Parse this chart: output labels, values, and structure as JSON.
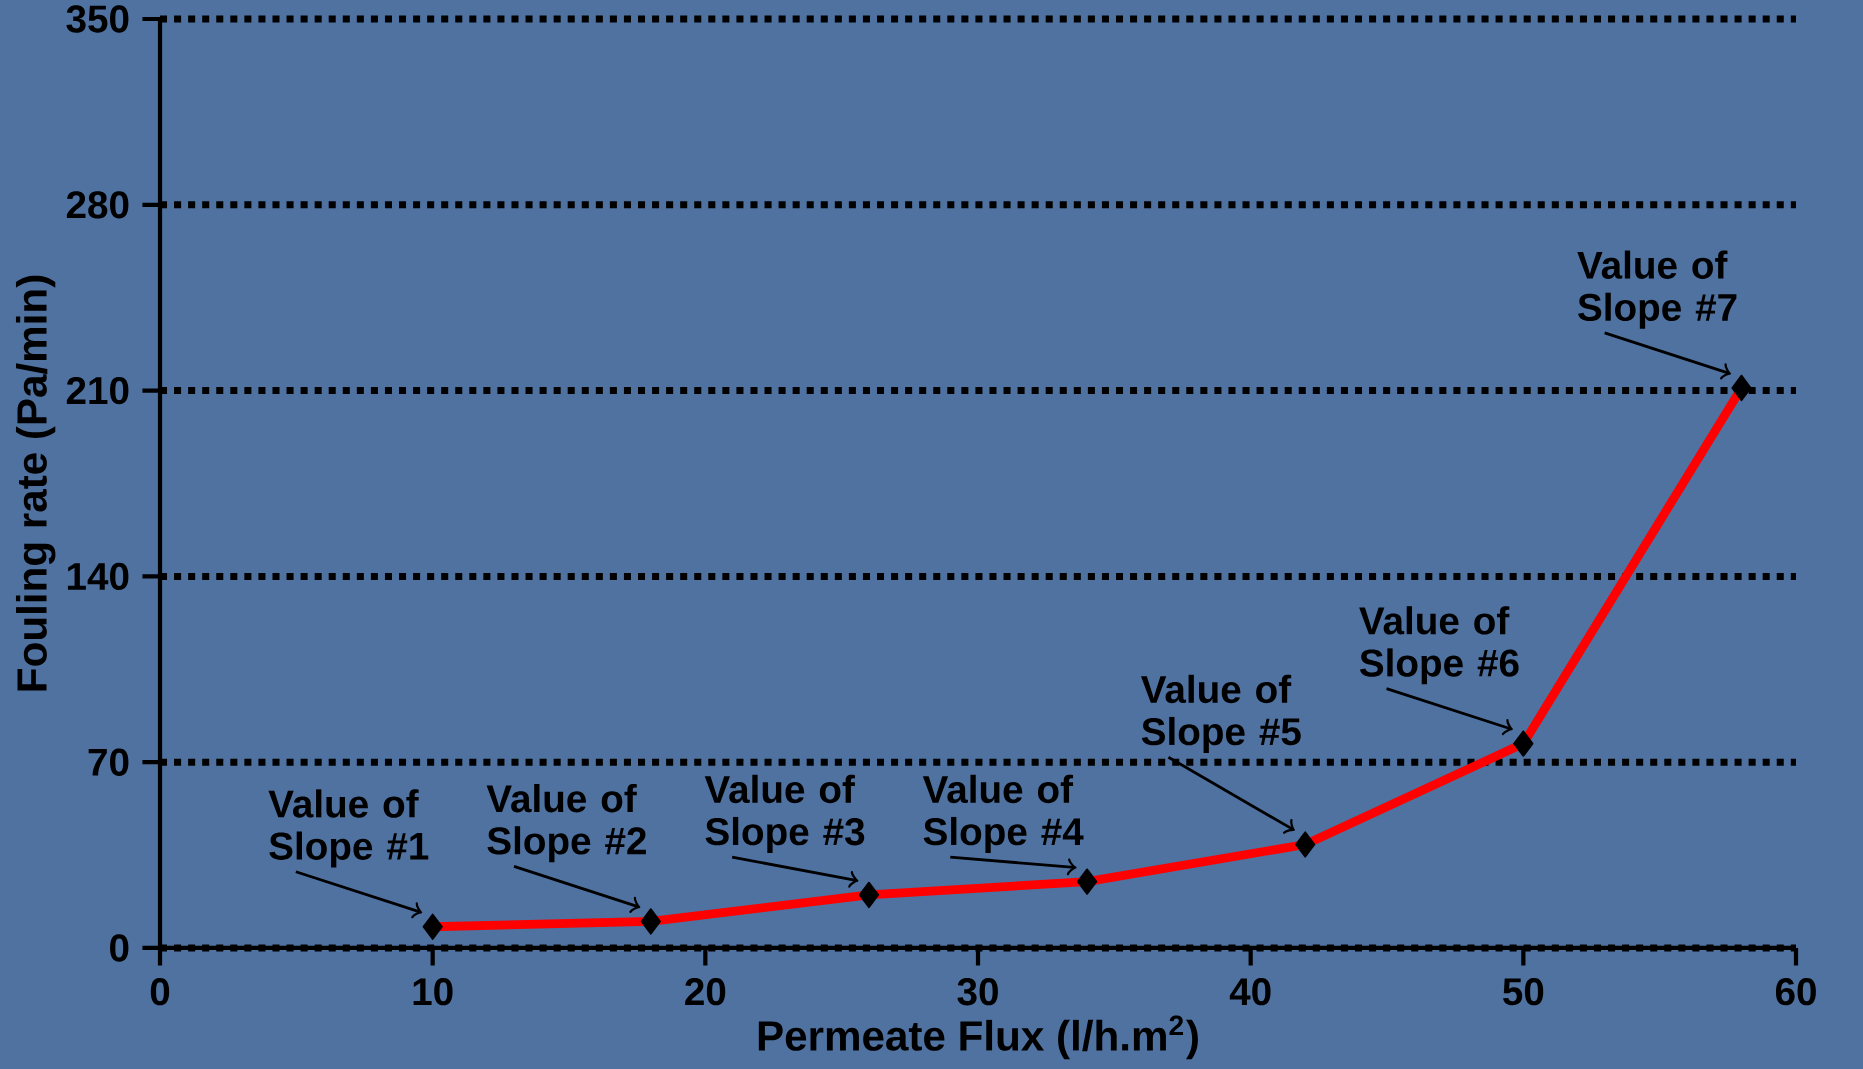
{
  "chart_data": {
    "type": "line",
    "xlabel": "Permeate Flux (l/h.m$^{2}$)",
    "ylabel": "Fouling rate (Pa/min)",
    "x": [
      10,
      18,
      26,
      34,
      42,
      50,
      58
    ],
    "series": [
      {
        "color": "#ff0000",
        "values": [
          8,
          10,
          20,
          25,
          39,
          77,
          211
        ]
      }
    ],
    "xlim": [
      0,
      60
    ],
    "xticks": [
      0,
      10,
      20,
      30,
      40,
      50,
      60
    ],
    "ylim": [
      0,
      350
    ],
    "yticks": [
      0,
      70,
      140,
      210,
      280,
      350
    ],
    "grid": "y",
    "marker": "diamond",
    "line_style": "solid",
    "annotations": [
      {
        "text": "Value of Slope #1",
        "x": 10,
        "y": 8
      },
      {
        "text": "Value of Slope #2",
        "x": 18,
        "y": 10
      },
      {
        "text": "Value of Slope #3",
        "x": 26,
        "y": 20
      },
      {
        "text": "Value of Slope #4",
        "x": 34,
        "y": 25
      },
      {
        "text": "Value of Slope #5",
        "x": 42,
        "y": 39
      },
      {
        "text": "Value of Slope #6",
        "x": 50,
        "y": 77
      },
      {
        "text": "Value of Slope #7",
        "x": 58,
        "y": 211
      }
    ]
  }
}
